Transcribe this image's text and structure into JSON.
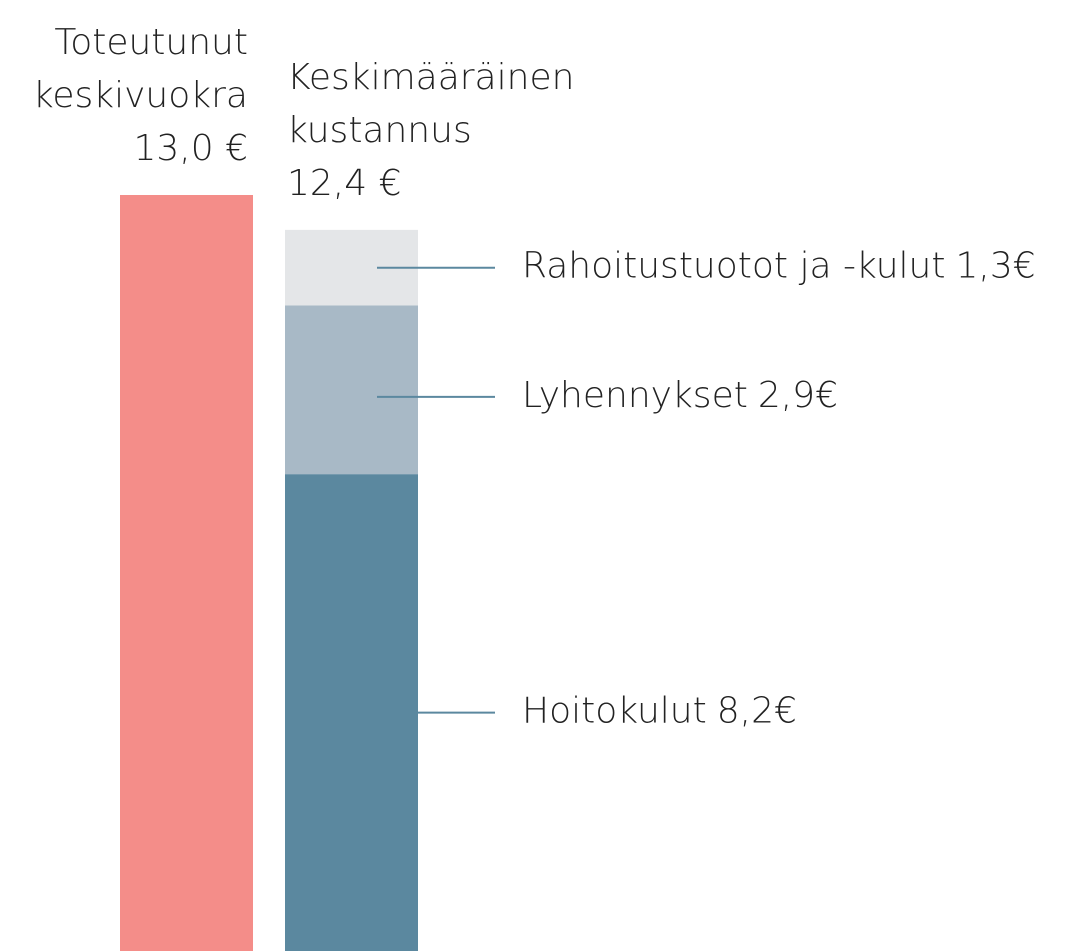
{
  "chart_data": {
    "type": "stacked_bar",
    "categories": [
      [
        "Toteutunut",
        "keskivuokra"
      ],
      [
        "Keskimääräinen",
        "kustannus"
      ]
    ],
    "totals": [
      13.0,
      12.4
    ],
    "total_labels": [
      "13,0 €",
      "12,4 €"
    ],
    "series": [
      {
        "color": "#f48d89",
        "values": [
          13.0,
          null
        ]
      },
      {
        "name": "Hoitokulut",
        "color": "#5b889f",
        "values": [
          null,
          8.2
        ],
        "value_labels": [
          null,
          "8,2€"
        ]
      },
      {
        "name": "Lyhennykset",
        "color": "#a8b9c6",
        "values": [
          null,
          2.9
        ],
        "value_labels": [
          null,
          "2,9€"
        ]
      },
      {
        "name": "Rahoitustuotot ja -kulut",
        "color": "#e4e6e8",
        "values": [
          null,
          1.3
        ],
        "value_labels": [
          null,
          "1,3€"
        ]
      }
    ],
    "ylim": [
      0,
      13
    ]
  }
}
